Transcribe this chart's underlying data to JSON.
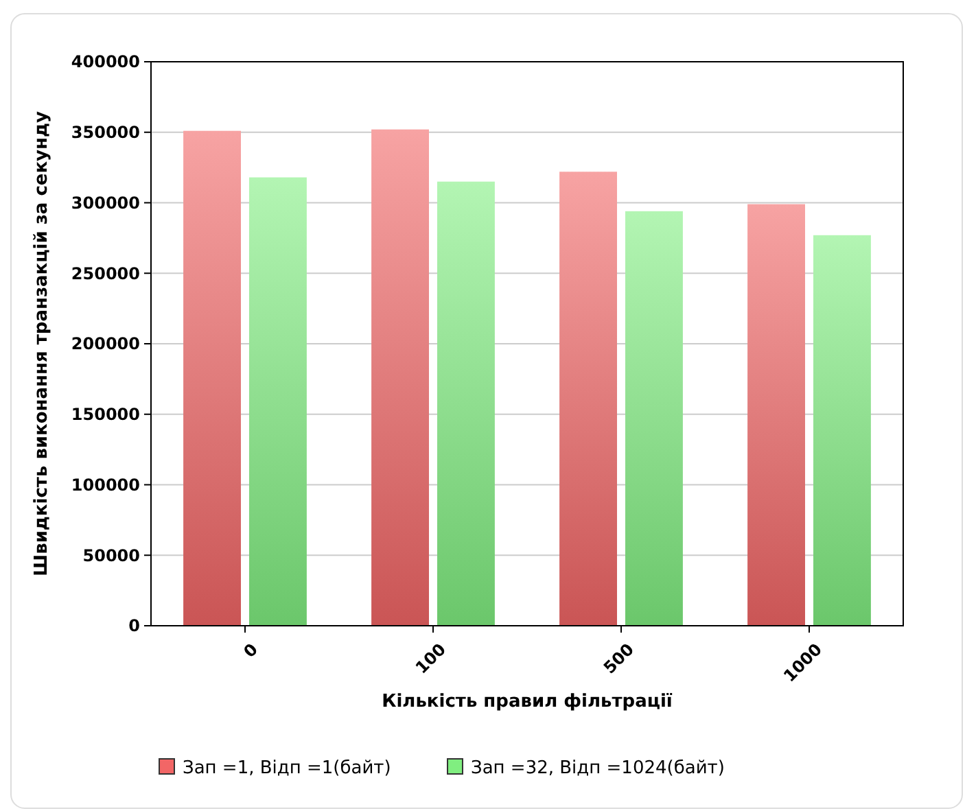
{
  "chart_data": {
    "type": "bar",
    "xlabel": "Кількість правил фільтрації",
    "ylabel": "Швидкість виконання транзакцій за секунду",
    "categories": [
      "0",
      "100",
      "500",
      "1000"
    ],
    "series": [
      {
        "name": "Зап =1, Відп =1(байт)",
        "color": "#f26666",
        "values": [
          351000,
          352000,
          322000,
          299000
        ]
      },
      {
        "name": "Зап =32, Відп =1024(байт)",
        "color": "#80ee80",
        "values": [
          318000,
          315000,
          294000,
          277000
        ]
      }
    ],
    "ylim": [
      0,
      400000
    ],
    "yticks": [
      0,
      50000,
      100000,
      150000,
      200000,
      250000,
      300000,
      350000,
      400000
    ],
    "grid": "y",
    "legend": "bottom"
  }
}
